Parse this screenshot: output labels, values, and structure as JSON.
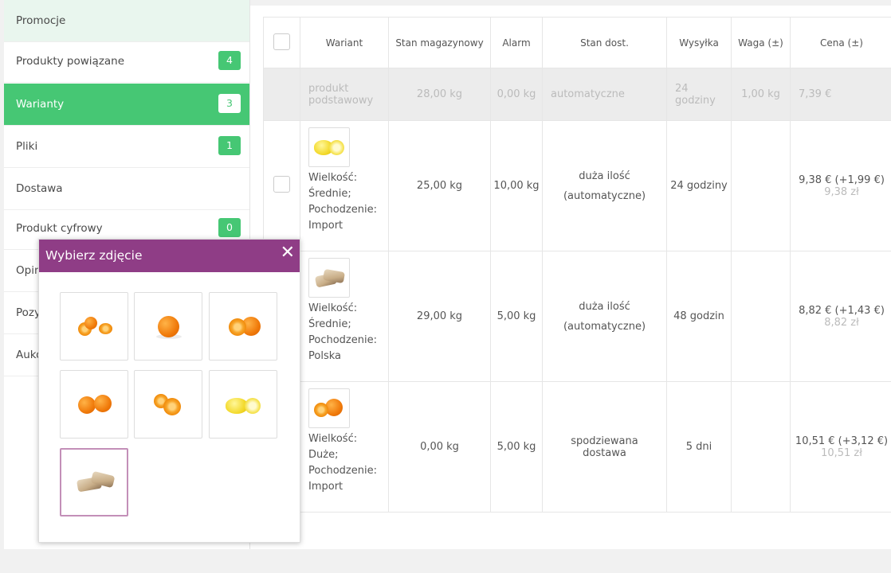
{
  "sidebar": {
    "items": [
      {
        "label": "Promocje",
        "badge": null
      },
      {
        "label": "Produkty powiązane",
        "badge": "4"
      },
      {
        "label": "Warianty",
        "badge": "3"
      },
      {
        "label": "Pliki",
        "badge": "1"
      },
      {
        "label": "Dostawa",
        "badge": null
      },
      {
        "label": "Produkt cyfrowy",
        "badge": "0"
      },
      {
        "label": "Opin",
        "badge": null
      },
      {
        "label": "Pozy",
        "badge": null
      },
      {
        "label": "Auko",
        "badge": null
      }
    ]
  },
  "table": {
    "headers": {
      "variant": "Wariant",
      "stock": "Stan magazynowy",
      "alarm": "Alarm",
      "availability": "Stan dost.",
      "shipping": "Wysyłka",
      "weight": "Waga (±)",
      "price": "Cena (±)"
    },
    "base": {
      "variant": "produkt podstawowy",
      "stock": "28,00 kg",
      "alarm": "0,00 kg",
      "availability": "automatyczne",
      "shipping": "24 godziny",
      "weight": "1,00 kg",
      "price": "7,39 €"
    },
    "rows": [
      {
        "desc_1": "Wielkość:",
        "desc_2": "Średnie;",
        "desc_3": "Pochodzenie:",
        "desc_4": "Import",
        "stock": "25,00 kg",
        "alarm": "10,00 kg",
        "availability_1": "duża ilość",
        "availability_2": "(automatyczne)",
        "shipping": "24 godziny",
        "price": "9,38 € (+1,99 €)",
        "price_pln": "9,38 zł",
        "image_icon": "lemon-thumbnail-icon"
      },
      {
        "desc_1": "Wielkość:",
        "desc_2": "Średnie;",
        "desc_3": "Pochodzenie:",
        "desc_4": "Polska",
        "stock": "29,00 kg",
        "alarm": "5,00 kg",
        "availability_1": "duża ilość",
        "availability_2": "(automatyczne)",
        "shipping": "48 godzin",
        "price": "8,82 € (+1,43 €)",
        "price_pln": "8,82 zł",
        "image_icon": "bread-thumbnail-icon"
      },
      {
        "desc_1": "Wielkość:",
        "desc_2": "Duże;",
        "desc_3": "Pochodzenie:",
        "desc_4": "Import",
        "stock": "0,00 kg",
        "alarm": "5,00 kg",
        "availability_1": "spodziewana",
        "availability_2": "dostawa",
        "shipping": "5 dni",
        "price": "10,51 € (+3,12 €)",
        "price_pln": "10,51 zł",
        "image_icon": "orange-thumbnail-icon"
      }
    ]
  },
  "popup": {
    "title": "Wybierz zdjęcie",
    "close_icon": "close-icon",
    "images": [
      "oranges-cut-icon",
      "orange-whole-icon",
      "orange-halves-icon",
      "oranges-pair-icon",
      "orange-slices-icon",
      "lemon-halves-icon",
      "bread-slices-icon"
    ],
    "selected_index": 6
  },
  "colors": {
    "accent_green": "#46c774",
    "popup_purple": "#8f3d86",
    "selected_border": "#c38fb8"
  }
}
